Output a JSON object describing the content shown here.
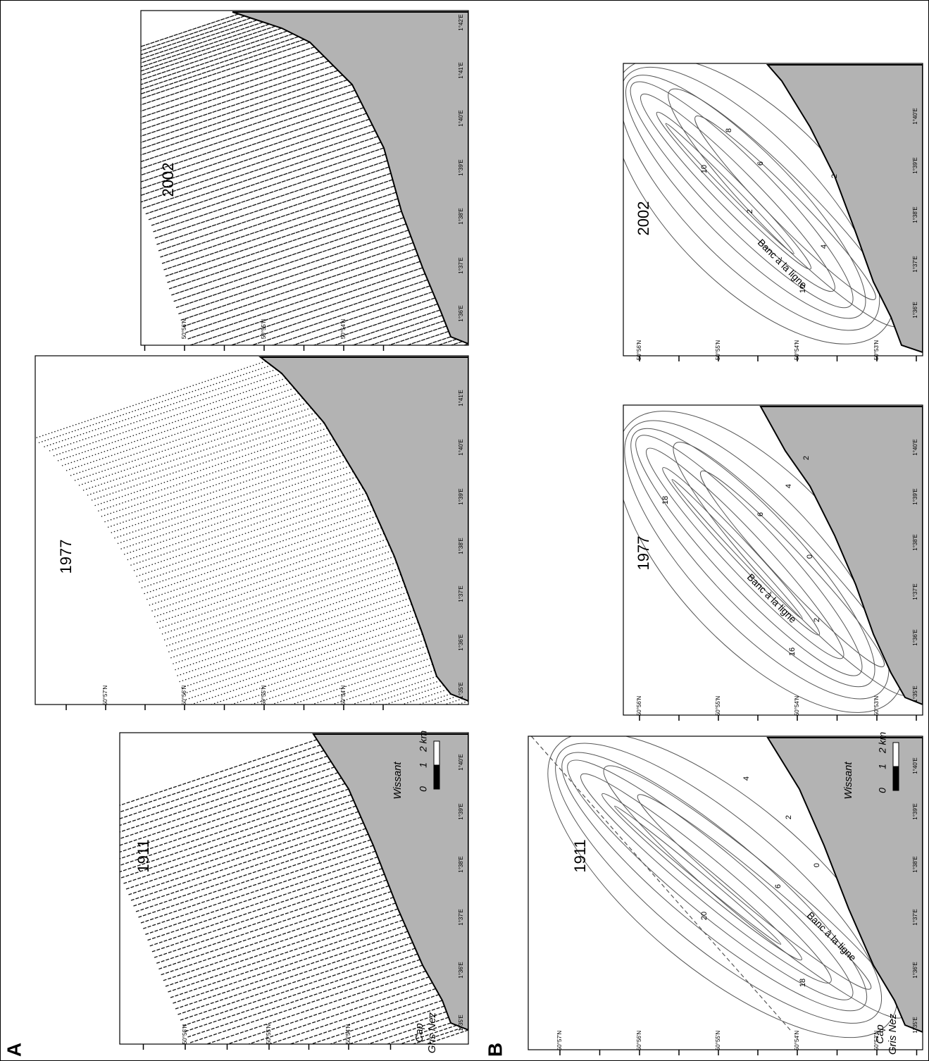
{
  "figure_a": {
    "label": "A",
    "panels": [
      {
        "year": "1911",
        "lat_labels": [
          "50°56'N",
          "50°55'N",
          "50°54'N"
        ],
        "lon_labels": [
          "1°35'E",
          "1°36'E",
          "1°37'E",
          "1°38'E",
          "1°39'E",
          "1°40'E"
        ],
        "place_labels": [
          "Cap",
          "Gris Nez",
          "Wissant"
        ],
        "scale_labels": [
          "0",
          "1",
          "2 km"
        ]
      },
      {
        "year": "1977",
        "lat_labels": [
          "50°57'N",
          "50°56'N",
          "50°55'N",
          "50°54'N"
        ],
        "lon_labels": [
          "1°35'E",
          "1°36'E",
          "1°37'E",
          "1°38'E",
          "1°39'E",
          "1°40'E",
          "1°41'E"
        ]
      },
      {
        "year": "2002",
        "lat_labels": [
          "50°56'N",
          "50°55'N",
          "50°54'N"
        ],
        "lon_labels": [
          "1°36'E",
          "1°37'E",
          "1°38'E",
          "1°39'E",
          "1°40'E",
          "1°41'E",
          "1°42'E"
        ]
      }
    ]
  },
  "figure_b": {
    "label": "B",
    "panels": [
      {
        "year": "1911",
        "lat_labels": [
          "50°57'N",
          "50°56'N",
          "50°55'N",
          "50°54'N",
          "50°53'N"
        ],
        "lon_labels": [
          "1°35'E",
          "1°36'E",
          "1°37'E",
          "1°38'E",
          "1°39'E",
          "1°40'E"
        ],
        "place_labels": [
          "Cap",
          "Gris Nez",
          "Wissant"
        ],
        "scale_labels": [
          "0",
          "1",
          "2 km"
        ],
        "contour_labels": [
          "18",
          "20",
          "6",
          "0",
          "2",
          "4",
          "Banc à la ligne"
        ]
      },
      {
        "year": "1977",
        "lat_labels": [
          "50°56'N",
          "50°55'N",
          "50°54'N",
          "50°53'N"
        ],
        "lon_labels": [
          "1°35'E",
          "1°36'E",
          "1°37'E",
          "1°38'E",
          "1°39'E",
          "1°40'E"
        ],
        "contour_labels": [
          "18",
          "16",
          "6",
          "2",
          "4",
          "2",
          "0",
          "Banc à la ligne"
        ]
      },
      {
        "year": "2002",
        "lat_labels": [
          "50°56'N",
          "50°55'N",
          "50°54'N",
          "50°53'N"
        ],
        "lon_labels": [
          "1°36'E",
          "1°37'E",
          "1°38'E",
          "1°39'E",
          "1°40'E"
        ],
        "contour_labels": [
          "10",
          "8",
          "6",
          "2",
          "2",
          "4",
          "10",
          "Banc à la ligne"
        ]
      }
    ]
  }
}
